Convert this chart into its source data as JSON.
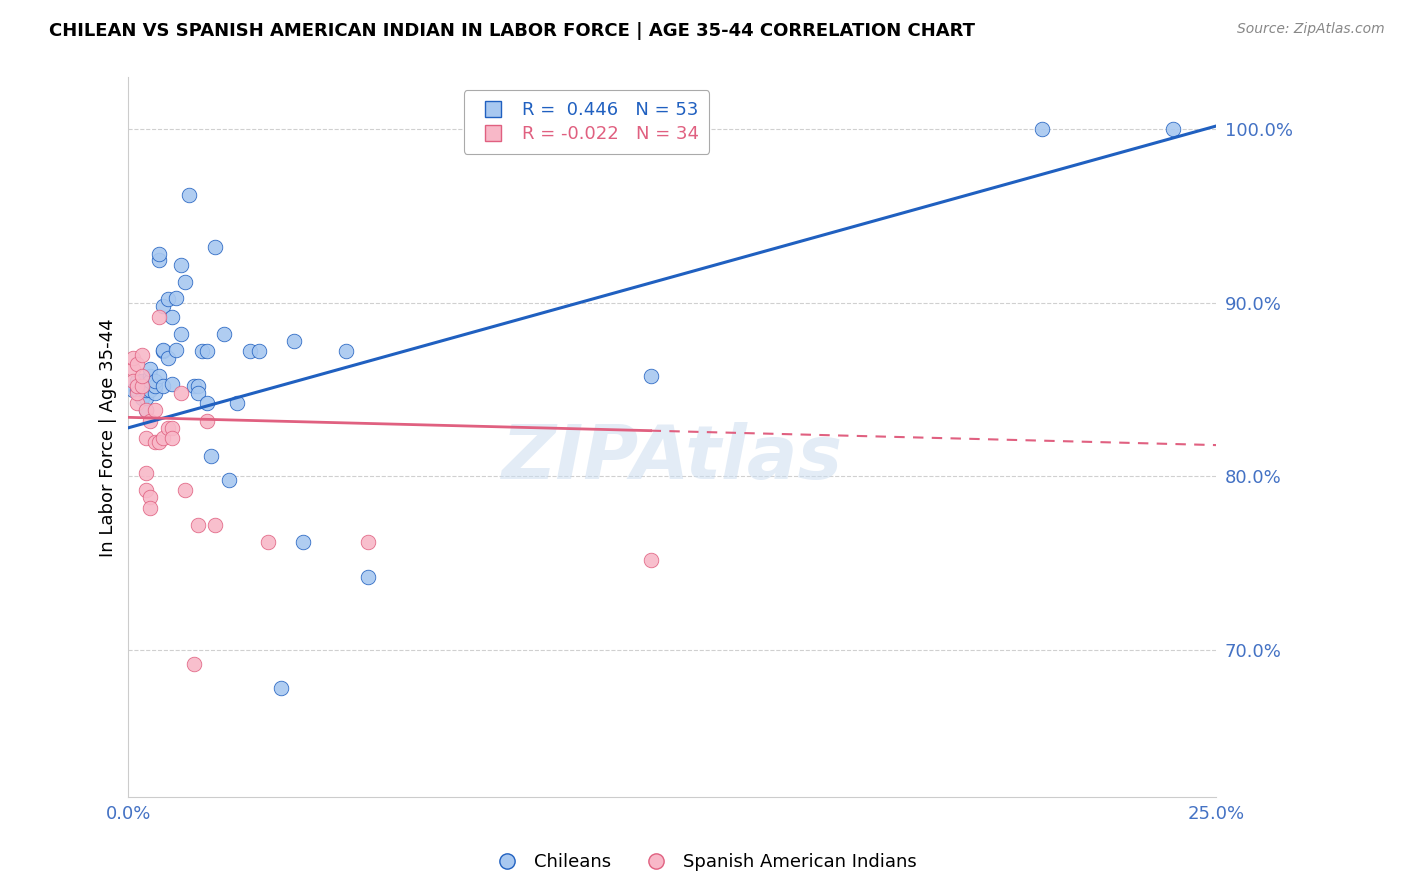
{
  "title": "CHILEAN VS SPANISH AMERICAN INDIAN IN LABOR FORCE | AGE 35-44 CORRELATION CHART",
  "source": "Source: ZipAtlas.com",
  "ylabel": "In Labor Force | Age 35-44",
  "xlim": [
    0.0,
    0.25
  ],
  "ylim": [
    0.615,
    1.03
  ],
  "yticks": [
    0.7,
    0.8,
    0.9,
    1.0
  ],
  "xticks": [
    0.0,
    0.25
  ],
  "r_blue": 0.446,
  "n_blue": 53,
  "r_pink": -0.022,
  "n_pink": 34,
  "blue_color": "#A8C8F0",
  "pink_color": "#F8B8C8",
  "line_blue": "#2060C0",
  "line_pink": "#E06080",
  "axis_color": "#4472C4",
  "legend_label_blue": "Chileans",
  "legend_label_pink": "Spanish American Indians",
  "blue_x": [
    0.001,
    0.002,
    0.002,
    0.003,
    0.003,
    0.004,
    0.004,
    0.004,
    0.005,
    0.005,
    0.005,
    0.005,
    0.006,
    0.006,
    0.006,
    0.007,
    0.007,
    0.007,
    0.008,
    0.008,
    0.008,
    0.008,
    0.009,
    0.009,
    0.01,
    0.01,
    0.011,
    0.011,
    0.012,
    0.012,
    0.013,
    0.014,
    0.015,
    0.016,
    0.016,
    0.017,
    0.018,
    0.018,
    0.019,
    0.02,
    0.022,
    0.023,
    0.025,
    0.028,
    0.03,
    0.035,
    0.038,
    0.04,
    0.05,
    0.055,
    0.12,
    0.21,
    0.24
  ],
  "blue_y": [
    0.85,
    0.85,
    0.855,
    0.845,
    0.855,
    0.838,
    0.845,
    0.85,
    0.85,
    0.858,
    0.855,
    0.862,
    0.848,
    0.852,
    0.855,
    0.925,
    0.928,
    0.858,
    0.872,
    0.873,
    0.852,
    0.898,
    0.902,
    0.868,
    0.892,
    0.853,
    0.873,
    0.903,
    0.882,
    0.922,
    0.912,
    0.962,
    0.852,
    0.852,
    0.848,
    0.872,
    0.842,
    0.872,
    0.812,
    0.932,
    0.882,
    0.798,
    0.842,
    0.872,
    0.872,
    0.678,
    0.878,
    0.762,
    0.872,
    0.742,
    0.858,
    1.0,
    1.0
  ],
  "pink_x": [
    0.001,
    0.001,
    0.001,
    0.002,
    0.002,
    0.002,
    0.002,
    0.003,
    0.003,
    0.003,
    0.004,
    0.004,
    0.004,
    0.004,
    0.005,
    0.005,
    0.005,
    0.006,
    0.006,
    0.007,
    0.007,
    0.008,
    0.009,
    0.01,
    0.01,
    0.012,
    0.013,
    0.015,
    0.016,
    0.018,
    0.02,
    0.032,
    0.055,
    0.12
  ],
  "pink_y": [
    0.862,
    0.855,
    0.868,
    0.842,
    0.848,
    0.852,
    0.865,
    0.87,
    0.852,
    0.858,
    0.838,
    0.822,
    0.802,
    0.792,
    0.788,
    0.782,
    0.832,
    0.838,
    0.82,
    0.892,
    0.82,
    0.822,
    0.828,
    0.828,
    0.822,
    0.848,
    0.792,
    0.692,
    0.772,
    0.832,
    0.772,
    0.762,
    0.762,
    0.752
  ],
  "blue_line_x0": 0.0,
  "blue_line_y0": 0.828,
  "blue_line_x1": 0.25,
  "blue_line_y1": 1.002,
  "pink_line_x0": 0.0,
  "pink_line_y0": 0.834,
  "pink_line_x1": 0.25,
  "pink_line_y1": 0.818
}
